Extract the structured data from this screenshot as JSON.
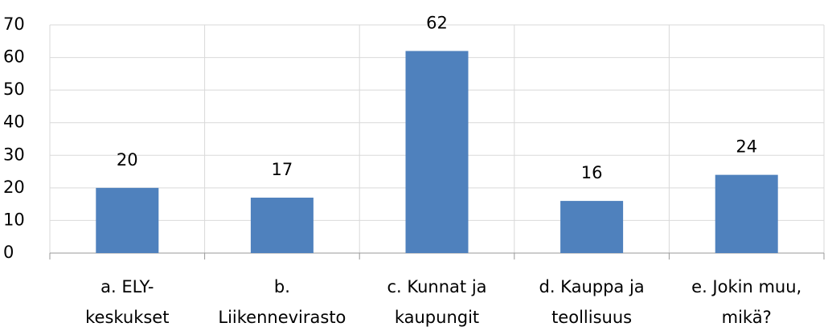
{
  "chart_data": {
    "type": "bar",
    "categories": [
      "a. ELY-keskukset",
      "b. Liikennevirasto",
      "c. Kunnat ja kaupungit",
      "d. Kauppa ja teollisuus",
      "e. Jokin muu, mikä?"
    ],
    "values": [
      20,
      17,
      62,
      16,
      24
    ],
    "color": "#4f81bd",
    "ylim": [
      0,
      70
    ],
    "yticks": [
      0,
      10,
      20,
      30,
      40,
      50,
      60,
      70
    ],
    "grid": true,
    "data_labels": true
  }
}
